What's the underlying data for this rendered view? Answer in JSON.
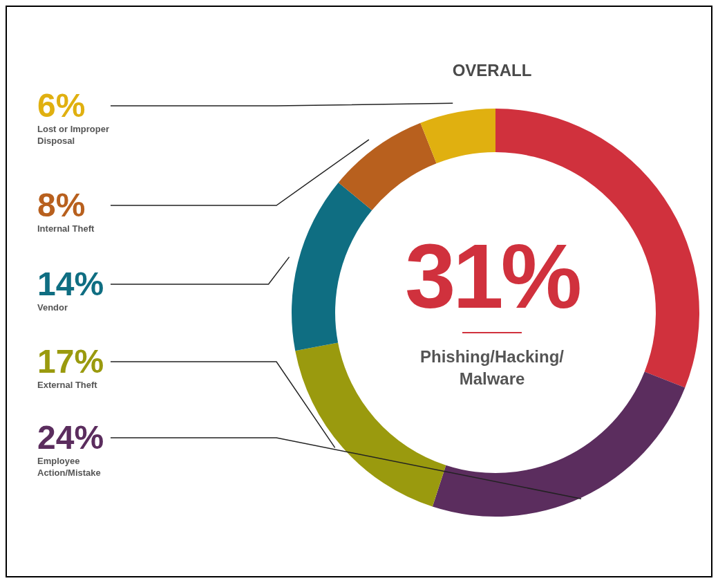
{
  "chart_data": {
    "type": "donut",
    "title": "OVERALL",
    "categories": [
      "Phishing/Hacking/Malware",
      "Employee Action/Mistake",
      "External Theft",
      "Vendor",
      "Internal Theft",
      "Lost or Improper Disposal"
    ],
    "values": [
      31,
      24,
      17,
      14,
      8,
      6
    ],
    "value_labels": [
      "31%",
      "24%",
      "17%",
      "14%",
      "8%",
      "6%"
    ],
    "colors": [
      "#d0313d",
      "#5b2d5e",
      "#9a9a0e",
      "#0f6e82",
      "#b8601e",
      "#e0b010"
    ]
  }
}
